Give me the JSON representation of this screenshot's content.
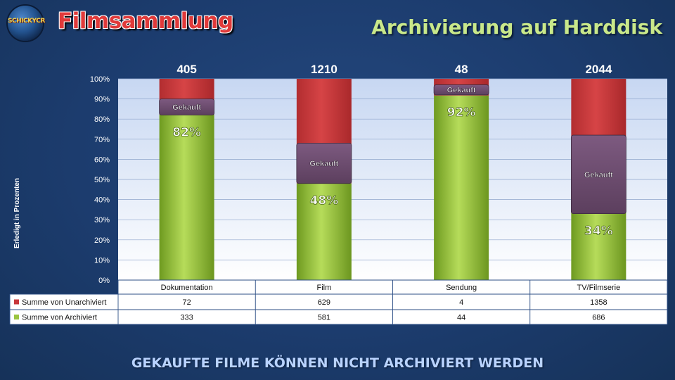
{
  "header": {
    "logo_text": "SCHICKYCR",
    "title_left": "Filmsammlung",
    "title_right": "Archivierung auf Harddisk"
  },
  "footer": {
    "text": "GEKAUFTE FILME KÖNNEN NICHT ARCHIVIERT WERDEN"
  },
  "colors": {
    "archiviert": "#9bc53f",
    "unarchiviert": "#c8373a",
    "gekauft": "#6d4d6e",
    "plot_bg_top": "#c7d7f2",
    "plot_bg_bottom": "#ffffff"
  },
  "chart_data": {
    "type": "bar",
    "stacked": "percent",
    "categories": [
      "Dokumentation",
      "Film",
      "Sendung",
      "TV/Filmserie"
    ],
    "totals": [
      405,
      1210,
      48,
      2044
    ],
    "series": [
      {
        "name": "Summe von Unarchiviert",
        "values": [
          72,
          629,
          4,
          1358
        ]
      },
      {
        "name": "Summe von Archiviert",
        "values": [
          333,
          581,
          44,
          686
        ]
      }
    ],
    "percent_labels": [
      "82%",
      "48%",
      "92%",
      "34%"
    ],
    "overlay": {
      "label": "Gekauft",
      "ranges_percent": [
        [
          82,
          90
        ],
        [
          48,
          68
        ],
        [
          92,
          97
        ],
        [
          33,
          72
        ]
      ]
    },
    "ylabel": "Erledigt in Prozenten",
    "ylim": [
      0,
      100
    ],
    "yticks": [
      "0%",
      "10%",
      "20%",
      "30%",
      "40%",
      "50%",
      "60%",
      "70%",
      "80%",
      "90%",
      "100%"
    ],
    "legend": "data-table",
    "grid": true
  }
}
